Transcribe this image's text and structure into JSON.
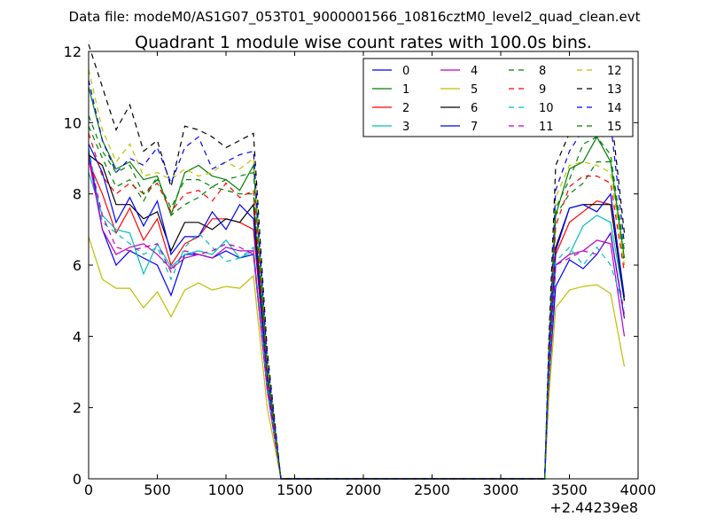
{
  "chart_data": {
    "type": "line",
    "suptitle": "Data file: modeM0/AS1G07_053T01_9000001566_10816cztM0_level2_quad_clean.evt",
    "title": "Quadrant 1 module wise count rates with 100.0s bins.",
    "xlabel": "",
    "ylabel": "",
    "xlim": [
      0,
      4000
    ],
    "ylim": [
      0,
      12
    ],
    "x_offset_label": "+2.44239e8",
    "xticks": [
      "0",
      "500",
      "1000",
      "1500",
      "2000",
      "2500",
      "3000",
      "3500",
      "4000"
    ],
    "yticks": [
      "0",
      "2",
      "4",
      "6",
      "8",
      "10",
      "12"
    ],
    "grid": false,
    "legend_placement": "top-right",
    "legend_columns": 4,
    "x": [
      0,
      100,
      200,
      300,
      400,
      500,
      600,
      700,
      800,
      900,
      1000,
      1100,
      1200,
      1300,
      1400,
      1430,
      1500,
      2000,
      2500,
      3000,
      3320,
      3350,
      3400,
      3500,
      3600,
      3700,
      3800,
      3900
    ],
    "series": [
      {
        "name": "0",
        "color": "#0000ff",
        "dashed": false,
        "values": [
          9.2,
          7.0,
          6.0,
          6.4,
          6.2,
          6.0,
          5.15,
          6.3,
          6.3,
          6.2,
          6.4,
          6.2,
          6.3,
          2.5,
          0.0,
          0.0,
          0.0,
          0.0,
          0.0,
          0.0,
          0.0,
          2.7,
          5.4,
          6.15,
          5.9,
          6.3,
          6.9,
          4.5
        ]
      },
      {
        "name": "1",
        "color": "#008000",
        "dashed": false,
        "values": [
          11.0,
          9.5,
          8.7,
          8.9,
          8.4,
          8.5,
          7.4,
          8.6,
          8.8,
          8.5,
          8.4,
          8.1,
          8.8,
          3.2,
          0.0,
          0.0,
          0.0,
          0.0,
          0.0,
          0.0,
          0.0,
          3.5,
          7.4,
          8.7,
          8.9,
          9.6,
          8.9,
          6.2
        ]
      },
      {
        "name": "2",
        "color": "#ff0000",
        "dashed": false,
        "values": [
          8.9,
          8.0,
          6.9,
          7.6,
          6.7,
          7.3,
          6.0,
          6.6,
          6.8,
          7.3,
          7.3,
          7.2,
          7.0,
          2.8,
          0.0,
          0.0,
          0.0,
          0.0,
          0.0,
          0.0,
          0.0,
          3.0,
          6.3,
          7.2,
          7.5,
          7.8,
          7.7,
          5.0
        ]
      },
      {
        "name": "3",
        "color": "#00bfbf",
        "dashed": false,
        "values": [
          8.6,
          7.4,
          7.0,
          6.9,
          5.75,
          6.6,
          5.95,
          6.3,
          6.4,
          6.3,
          6.7,
          6.2,
          6.4,
          2.5,
          0.0,
          0.0,
          0.0,
          0.0,
          0.0,
          0.0,
          0.0,
          2.7,
          6.0,
          6.3,
          7.1,
          7.4,
          7.2,
          5.0
        ]
      },
      {
        "name": "4",
        "color": "#bf00bf",
        "dashed": false,
        "values": [
          9.0,
          7.0,
          6.3,
          6.5,
          6.6,
          6.3,
          5.9,
          6.2,
          6.3,
          6.2,
          6.5,
          6.4,
          6.4,
          2.5,
          0.0,
          0.0,
          0.0,
          0.0,
          0.0,
          0.0,
          0.0,
          2.8,
          6.0,
          6.3,
          6.4,
          6.7,
          6.6,
          4.0
        ]
      },
      {
        "name": "5",
        "color": "#bfbf00",
        "dashed": false,
        "values": [
          6.8,
          5.6,
          5.35,
          5.35,
          4.8,
          5.25,
          4.55,
          5.3,
          5.5,
          5.3,
          5.4,
          5.35,
          5.7,
          2.0,
          0.0,
          0.0,
          0.0,
          0.0,
          0.0,
          0.0,
          0.0,
          2.3,
          4.8,
          5.3,
          5.4,
          5.45,
          5.2,
          3.15
        ]
      },
      {
        "name": "6",
        "color": "#000000",
        "dashed": false,
        "values": [
          9.1,
          8.8,
          7.7,
          7.7,
          7.3,
          7.5,
          6.4,
          7.2,
          7.2,
          7.0,
          7.3,
          7.2,
          7.7,
          2.9,
          0.0,
          0.0,
          0.0,
          0.0,
          0.0,
          0.0,
          0.0,
          3.1,
          6.5,
          7.6,
          7.7,
          7.7,
          7.7,
          5.0
        ]
      },
      {
        "name": "7",
        "color": "#0000ff",
        "dashed": false,
        "values": [
          9.4,
          8.6,
          7.2,
          7.9,
          7.1,
          7.8,
          6.3,
          6.8,
          6.8,
          7.5,
          7.0,
          7.7,
          7.3,
          2.8,
          0.0,
          0.0,
          0.0,
          0.0,
          0.0,
          0.0,
          0.0,
          3.0,
          6.4,
          7.6,
          7.7,
          7.5,
          8.0,
          5.1
        ]
      },
      {
        "name": "8",
        "color": "#008000",
        "dashed": true,
        "values": [
          9.9,
          9.0,
          8.2,
          8.4,
          7.8,
          8.5,
          7.4,
          7.7,
          7.9,
          8.2,
          8.1,
          8.0,
          8.0,
          3.0,
          0.0,
          0.0,
          0.0,
          0.0,
          0.0,
          0.0,
          0.0,
          3.3,
          7.4,
          8.0,
          8.3,
          8.9,
          8.9,
          6.0
        ]
      },
      {
        "name": "9",
        "color": "#ff0000",
        "dashed": true,
        "values": [
          9.7,
          8.5,
          8.0,
          8.3,
          8.0,
          8.3,
          7.5,
          8.0,
          8.1,
          7.8,
          8.3,
          7.9,
          8.1,
          3.0,
          0.0,
          0.0,
          0.0,
          0.0,
          0.0,
          0.0,
          0.0,
          3.2,
          7.1,
          8.2,
          8.5,
          8.5,
          8.3,
          5.8
        ]
      },
      {
        "name": "10",
        "color": "#00bfbf",
        "dashed": true,
        "values": [
          9.3,
          7.2,
          6.9,
          6.6,
          6.3,
          6.5,
          5.6,
          6.5,
          6.9,
          6.5,
          6.1,
          6.2,
          6.5,
          2.6,
          0.0,
          0.0,
          0.0,
          0.0,
          0.0,
          0.0,
          0.0,
          2.8,
          6.1,
          6.5,
          6.0,
          6.5,
          6.0,
          4.8
        ]
      },
      {
        "name": "11",
        "color": "#bf00bf",
        "dashed": true,
        "values": [
          9.1,
          7.4,
          6.5,
          6.4,
          6.5,
          6.6,
          5.8,
          6.4,
          6.3,
          6.4,
          6.6,
          6.5,
          6.3,
          2.5,
          0.0,
          0.0,
          0.0,
          0.0,
          0.0,
          0.0,
          0.0,
          2.7,
          6.0,
          6.2,
          6.4,
          6.3,
          6.9,
          4.6
        ]
      },
      {
        "name": "12",
        "color": "#bfbf00",
        "dashed": true,
        "values": [
          11.5,
          9.8,
          8.9,
          9.4,
          8.5,
          8.6,
          8.4,
          8.7,
          8.5,
          8.6,
          8.9,
          8.7,
          9.0,
          3.3,
          0.0,
          0.0,
          0.0,
          0.0,
          0.0,
          0.0,
          0.0,
          3.6,
          7.9,
          8.8,
          8.9,
          8.8,
          8.6,
          6.0
        ]
      },
      {
        "name": "13",
        "color": "#000000",
        "dashed": true,
        "values": [
          12.2,
          11.0,
          9.8,
          10.5,
          9.2,
          9.5,
          8.2,
          9.9,
          9.8,
          9.6,
          9.3,
          9.5,
          9.7,
          3.6,
          0.0,
          0.0,
          0.0,
          0.0,
          0.0,
          0.0,
          0.0,
          3.9,
          8.8,
          9.7,
          10.2,
          10.3,
          10.4,
          6.9
        ]
      },
      {
        "name": "14",
        "color": "#0000ff",
        "dashed": true,
        "values": [
          11.2,
          9.5,
          8.6,
          9.0,
          8.8,
          9.3,
          8.3,
          9.3,
          9.6,
          8.7,
          8.9,
          9.1,
          9.2,
          3.4,
          0.0,
          0.0,
          0.0,
          0.0,
          0.0,
          0.0,
          0.0,
          3.7,
          8.1,
          9.2,
          9.8,
          10.2,
          10.0,
          6.6
        ]
      },
      {
        "name": "15",
        "color": "#008000",
        "dashed": true,
        "values": [
          10.2,
          9.2,
          8.6,
          8.8,
          8.0,
          8.4,
          7.6,
          8.4,
          8.4,
          8.2,
          8.4,
          8.5,
          8.6,
          3.1,
          0.0,
          0.0,
          0.0,
          0.0,
          0.0,
          0.0,
          0.0,
          3.4,
          7.6,
          8.4,
          9.4,
          9.6,
          9.1,
          6.4
        ]
      }
    ]
  }
}
